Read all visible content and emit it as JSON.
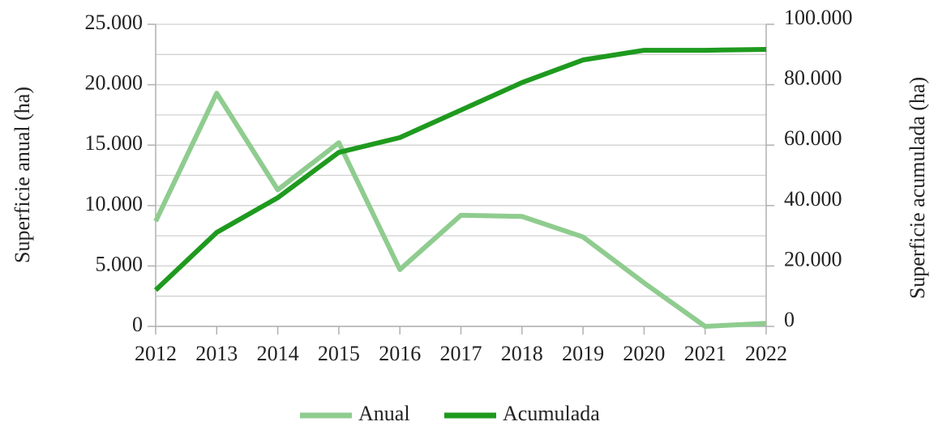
{
  "chart_data": {
    "type": "line",
    "x": [
      2012,
      2013,
      2014,
      2015,
      2016,
      2017,
      2018,
      2019,
      2020,
      2021,
      2022
    ],
    "xlim": [
      2012,
      2022
    ],
    "xticks": [
      2012,
      2013,
      2014,
      2015,
      2016,
      2017,
      2018,
      2019,
      2020,
      2021,
      2022
    ],
    "ylabel": "Superficie anual (ha)",
    "y2label": "Superficie acumulada (ha)",
    "ylim": [
      0,
      25000
    ],
    "yticks": [
      0,
      {
        "value": 5000,
        "label": "5.000"
      },
      {
        "value": 10000,
        "label": "10.000"
      },
      {
        "value": 15000,
        "label": "15.000"
      },
      {
        "value": 20000,
        "label": "20.000"
      },
      {
        "value": 25000,
        "label": "25.000"
      }
    ],
    "yminorticks": [
      2500,
      7500,
      12500,
      17500,
      22500
    ],
    "y2lim": [
      0,
      100000
    ],
    "y2ticks": [
      0,
      {
        "value": 20000,
        "label": "20.000"
      },
      {
        "value": 40000,
        "label": "40.000"
      },
      {
        "value": 60000,
        "label": "60.000"
      },
      {
        "value": 80000,
        "label": "80.000"
      },
      {
        "value": 100000,
        "label": "100.000"
      }
    ],
    "grid": true,
    "legend": "bottom",
    "series": [
      {
        "name": "Anual",
        "color": "#8fcc8f",
        "values": [
          8700,
          19300,
          11300,
          15200,
          4700,
          9200,
          9100,
          7400,
          3600,
          0,
          250
        ]
      },
      {
        "name": "Acumulada",
        "color": "#1e9a1e",
        "axis": "y2",
        "values": [
          12000,
          31100,
          42600,
          57600,
          62500,
          71600,
          80700,
          88200,
          91400,
          91400,
          91700
        ]
      }
    ]
  }
}
